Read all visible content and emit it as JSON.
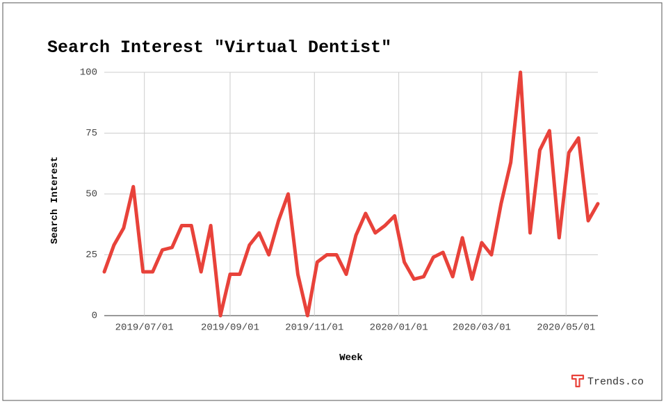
{
  "chart_data": {
    "type": "line",
    "title": "Search Interest \"Virtual Dentist\"",
    "x_label": "Week",
    "y_label": "Search Interest",
    "brand": "Trends.co",
    "x": [
      "2019/06/02",
      "2019/06/09",
      "2019/06/16",
      "2019/06/23",
      "2019/06/30",
      "2019/07/07",
      "2019/07/14",
      "2019/07/21",
      "2019/07/28",
      "2019/08/04",
      "2019/08/11",
      "2019/08/18",
      "2019/08/25",
      "2019/09/01",
      "2019/09/08",
      "2019/09/15",
      "2019/09/22",
      "2019/09/29",
      "2019/10/06",
      "2019/10/13",
      "2019/10/20",
      "2019/10/27",
      "2019/11/03",
      "2019/11/10",
      "2019/11/17",
      "2019/11/24",
      "2019/12/01",
      "2019/12/08",
      "2019/12/15",
      "2019/12/22",
      "2019/12/29",
      "2020/01/05",
      "2020/01/12",
      "2020/01/19",
      "2020/01/26",
      "2020/02/02",
      "2020/02/09",
      "2020/02/16",
      "2020/02/23",
      "2020/03/01",
      "2020/03/08",
      "2020/03/15",
      "2020/03/22",
      "2020/03/29",
      "2020/04/05",
      "2020/04/12",
      "2020/04/19",
      "2020/04/26",
      "2020/05/03",
      "2020/05/10",
      "2020/05/17",
      "2020/05/24"
    ],
    "series": [
      {
        "name": "Search Interest",
        "color": "#e8423a",
        "values": [
          18,
          29,
          36,
          53,
          18,
          18,
          27,
          28,
          37,
          37,
          18,
          37,
          0,
          17,
          17,
          29,
          34,
          25,
          39,
          50,
          17,
          0,
          22,
          25,
          25,
          17,
          33,
          42,
          34,
          37,
          41,
          22,
          15,
          16,
          24,
          26,
          16,
          32,
          15,
          30,
          25,
          46,
          63,
          100,
          34,
          68,
          76,
          32,
          67,
          73,
          39,
          46
        ]
      }
    ],
    "xlim": [
      "2019/06/02",
      "2020/05/24"
    ],
    "xticks": [
      "2019/07/01",
      "2019/09/01",
      "2019/11/01",
      "2020/01/01",
      "2020/03/01",
      "2020/05/01"
    ],
    "ylim": [
      0,
      100
    ],
    "yticks": [
      0,
      25,
      50,
      75,
      100
    ],
    "grid": true
  }
}
